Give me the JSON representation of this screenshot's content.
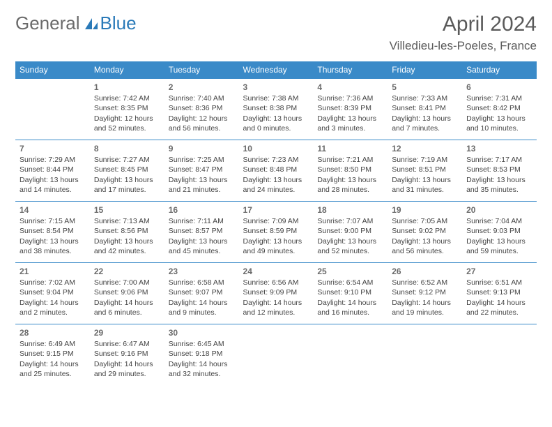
{
  "logo": {
    "text1": "General",
    "text2": "Blue"
  },
  "title": "April 2024",
  "location": "Villedieu-les-Poeles, France",
  "colors": {
    "header_bg": "#3a8ac8",
    "header_text": "#ffffff",
    "text": "#444444",
    "rule": "#3a8ac8",
    "logo_gray": "#6a6a6a",
    "logo_blue": "#2a7ab8"
  },
  "day_headers": [
    "Sunday",
    "Monday",
    "Tuesday",
    "Wednesday",
    "Thursday",
    "Friday",
    "Saturday"
  ],
  "first_weekday_index": 1,
  "days": [
    {
      "n": 1,
      "sr": "7:42 AM",
      "ss": "8:35 PM",
      "dl": "12 hours and 52 minutes."
    },
    {
      "n": 2,
      "sr": "7:40 AM",
      "ss": "8:36 PM",
      "dl": "12 hours and 56 minutes."
    },
    {
      "n": 3,
      "sr": "7:38 AM",
      "ss": "8:38 PM",
      "dl": "13 hours and 0 minutes."
    },
    {
      "n": 4,
      "sr": "7:36 AM",
      "ss": "8:39 PM",
      "dl": "13 hours and 3 minutes."
    },
    {
      "n": 5,
      "sr": "7:33 AM",
      "ss": "8:41 PM",
      "dl": "13 hours and 7 minutes."
    },
    {
      "n": 6,
      "sr": "7:31 AM",
      "ss": "8:42 PM",
      "dl": "13 hours and 10 minutes."
    },
    {
      "n": 7,
      "sr": "7:29 AM",
      "ss": "8:44 PM",
      "dl": "13 hours and 14 minutes."
    },
    {
      "n": 8,
      "sr": "7:27 AM",
      "ss": "8:45 PM",
      "dl": "13 hours and 17 minutes."
    },
    {
      "n": 9,
      "sr": "7:25 AM",
      "ss": "8:47 PM",
      "dl": "13 hours and 21 minutes."
    },
    {
      "n": 10,
      "sr": "7:23 AM",
      "ss": "8:48 PM",
      "dl": "13 hours and 24 minutes."
    },
    {
      "n": 11,
      "sr": "7:21 AM",
      "ss": "8:50 PM",
      "dl": "13 hours and 28 minutes."
    },
    {
      "n": 12,
      "sr": "7:19 AM",
      "ss": "8:51 PM",
      "dl": "13 hours and 31 minutes."
    },
    {
      "n": 13,
      "sr": "7:17 AM",
      "ss": "8:53 PM",
      "dl": "13 hours and 35 minutes."
    },
    {
      "n": 14,
      "sr": "7:15 AM",
      "ss": "8:54 PM",
      "dl": "13 hours and 38 minutes."
    },
    {
      "n": 15,
      "sr": "7:13 AM",
      "ss": "8:56 PM",
      "dl": "13 hours and 42 minutes."
    },
    {
      "n": 16,
      "sr": "7:11 AM",
      "ss": "8:57 PM",
      "dl": "13 hours and 45 minutes."
    },
    {
      "n": 17,
      "sr": "7:09 AM",
      "ss": "8:59 PM",
      "dl": "13 hours and 49 minutes."
    },
    {
      "n": 18,
      "sr": "7:07 AM",
      "ss": "9:00 PM",
      "dl": "13 hours and 52 minutes."
    },
    {
      "n": 19,
      "sr": "7:05 AM",
      "ss": "9:02 PM",
      "dl": "13 hours and 56 minutes."
    },
    {
      "n": 20,
      "sr": "7:04 AM",
      "ss": "9:03 PM",
      "dl": "13 hours and 59 minutes."
    },
    {
      "n": 21,
      "sr": "7:02 AM",
      "ss": "9:04 PM",
      "dl": "14 hours and 2 minutes."
    },
    {
      "n": 22,
      "sr": "7:00 AM",
      "ss": "9:06 PM",
      "dl": "14 hours and 6 minutes."
    },
    {
      "n": 23,
      "sr": "6:58 AM",
      "ss": "9:07 PM",
      "dl": "14 hours and 9 minutes."
    },
    {
      "n": 24,
      "sr": "6:56 AM",
      "ss": "9:09 PM",
      "dl": "14 hours and 12 minutes."
    },
    {
      "n": 25,
      "sr": "6:54 AM",
      "ss": "9:10 PM",
      "dl": "14 hours and 16 minutes."
    },
    {
      "n": 26,
      "sr": "6:52 AM",
      "ss": "9:12 PM",
      "dl": "14 hours and 19 minutes."
    },
    {
      "n": 27,
      "sr": "6:51 AM",
      "ss": "9:13 PM",
      "dl": "14 hours and 22 minutes."
    },
    {
      "n": 28,
      "sr": "6:49 AM",
      "ss": "9:15 PM",
      "dl": "14 hours and 25 minutes."
    },
    {
      "n": 29,
      "sr": "6:47 AM",
      "ss": "9:16 PM",
      "dl": "14 hours and 29 minutes."
    },
    {
      "n": 30,
      "sr": "6:45 AM",
      "ss": "9:18 PM",
      "dl": "14 hours and 32 minutes."
    }
  ],
  "labels": {
    "sunrise": "Sunrise:",
    "sunset": "Sunset:",
    "daylight": "Daylight:"
  }
}
